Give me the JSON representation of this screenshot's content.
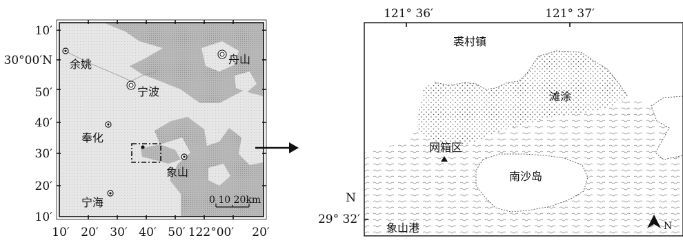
{
  "left_map": {
    "lat_labels": [
      "10′",
      "30°00′N",
      "50′",
      "40′",
      "30′",
      "20′",
      "10′"
    ],
    "lon_labels": [
      "10′",
      "20′",
      "30′",
      "40′",
      "50′",
      "122°00′",
      "20′"
    ],
    "cities": {
      "yuyao": "余姚",
      "ningbo": "宁波",
      "zhoushan": "舟山",
      "fenghua": "奉化",
      "xiangshan": "象山",
      "ninghai": "宁海"
    },
    "scale_bar": {
      "label": "0  10 20km"
    }
  },
  "right_map": {
    "lon_labels": [
      "121° 36′",
      "121° 37′"
    ],
    "lat_label": "29° 32′",
    "lat_label_n": "N",
    "places": {
      "qiucun": "裘村镇",
      "tantu": "滩涂",
      "wangxiang": "网箱区",
      "nansha": "南沙岛",
      "xiangshangang": "象山港"
    },
    "north_arrow": {
      "label": "N"
    }
  }
}
